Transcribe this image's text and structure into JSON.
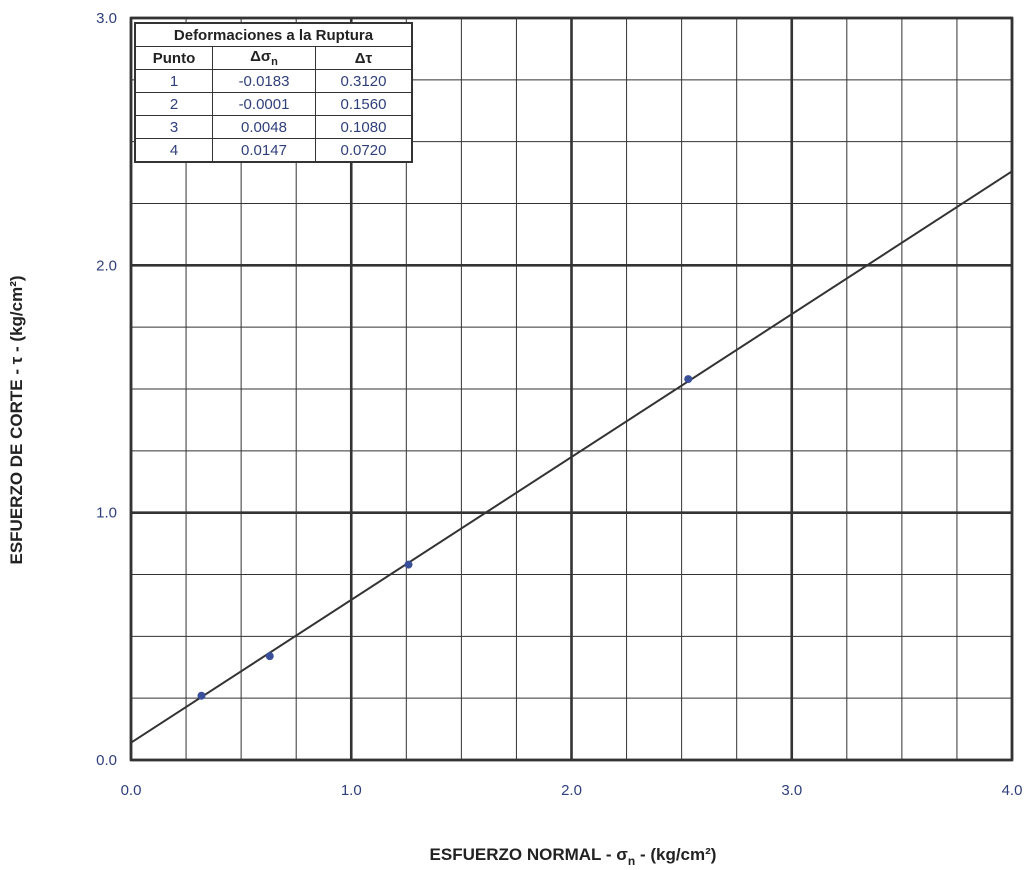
{
  "chart_data": {
    "type": "line",
    "xlabel": "ESFUERZO NORMAL - σ",
    "xlabel_sub": "n",
    "xlabel_unit": " - (kg/cm²)",
    "ylabel": "ESFUERZO DE CORTE - τ - (kg/cm²)",
    "xlim": [
      0,
      4
    ],
    "ylim": [
      0,
      3
    ],
    "x_ticks": [
      "0.0",
      "1.0",
      "2.0",
      "3.0",
      "4.0"
    ],
    "y_ticks": [
      "0.0",
      "1.0",
      "2.0",
      "3.0"
    ],
    "grid": true,
    "points": [
      {
        "x": 0.32,
        "y": 0.26
      },
      {
        "x": 0.63,
        "y": 0.42
      },
      {
        "x": 1.26,
        "y": 0.79
      },
      {
        "x": 2.53,
        "y": 1.54
      }
    ],
    "fit_line": {
      "x": [
        0.0,
        4.0
      ],
      "y": [
        0.07,
        2.38
      ]
    },
    "colors": {
      "points": "#3a4f9a",
      "line": "#333333",
      "grid": "#333333",
      "ticks": "#2f3f7a"
    }
  },
  "table": {
    "title": "Deformaciones a la Ruptura",
    "headers": {
      "punto": "Punto",
      "dsn_symbol": "Δσ",
      "dsn_sub": "n",
      "dt": "Δτ"
    },
    "rows": [
      {
        "punto": "1",
        "dsn": "-0.0183",
        "dt": "0.3120"
      },
      {
        "punto": "2",
        "dsn": "-0.0001",
        "dt": "0.1560"
      },
      {
        "punto": "3",
        "dsn": "0.0048",
        "dt": "0.1080"
      },
      {
        "punto": "4",
        "dsn": "0.0147",
        "dt": "0.0720"
      }
    ]
  }
}
